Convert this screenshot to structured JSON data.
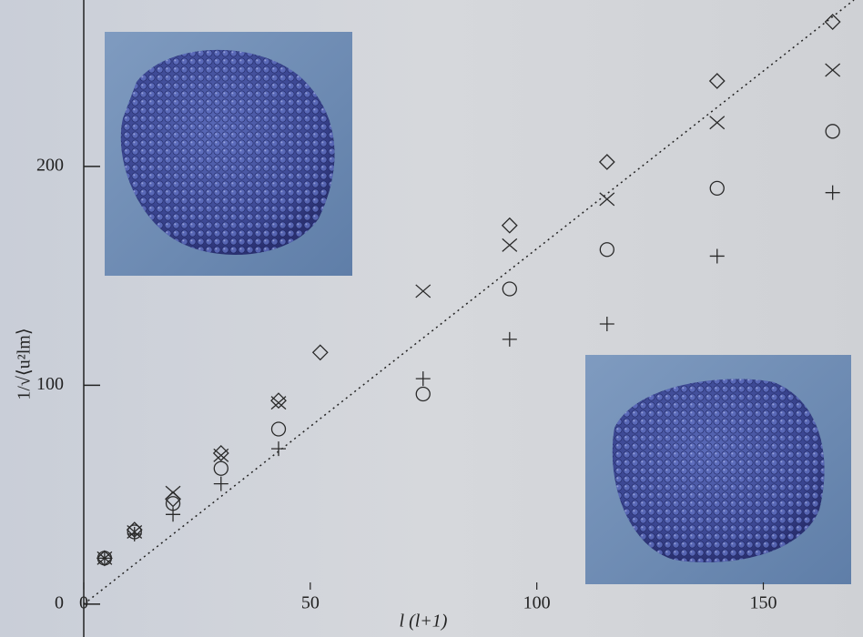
{
  "chart_data": {
    "type": "scatter",
    "x_label": "l (l+1)",
    "y_label": "1/√⟨u²lm⟩",
    "x": [
      4.6,
      11.2,
      19.7,
      30.3,
      43,
      52.2,
      74.9,
      94,
      115.5,
      139.8,
      165.3
    ],
    "series": [
      {
        "marker": "diamond",
        "color": "#2a2a2a",
        "values": [
          21,
          34,
          48,
          69,
          93,
          115,
          null,
          173,
          202,
          239,
          266
        ]
      },
      {
        "marker": "cross",
        "color": "#2a2a2a",
        "values": [
          21,
          33,
          51,
          68,
          92,
          null,
          143,
          164,
          185,
          220,
          244
        ]
      },
      {
        "marker": "circle",
        "color": "#2a2a2a",
        "values": [
          21,
          33,
          46,
          62,
          80,
          null,
          96,
          144,
          162,
          190,
          216
        ]
      },
      {
        "marker": "plus",
        "color": "#2a2a2a",
        "values": [
          21,
          32,
          41,
          55,
          71,
          null,
          103,
          121,
          128,
          159,
          188
        ]
      }
    ],
    "reference_line": {
      "x": [
        0,
        170
      ],
      "y": [
        0,
        276
      ]
    },
    "xlim": [
      0,
      172
    ],
    "ylim": [
      -15,
      276
    ],
    "xticks": [
      0,
      50,
      100,
      150
    ],
    "yticks": [
      0,
      100,
      200
    ]
  }
}
